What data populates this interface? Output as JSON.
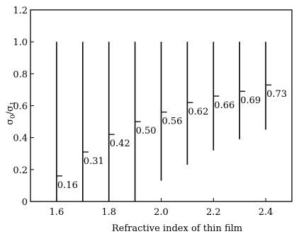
{
  "chart_data": {
    "type": "range-bar",
    "title": "",
    "xlabel": "Refractive index of thin film",
    "ylabel": "σ0/σ1",
    "ylabel_main": "σ",
    "ylabel_sub1": "0",
    "ylabel_slash": "/",
    "ylabel_sub2": "1",
    "xlim": [
      1.5,
      2.5
    ],
    "ylim": [
      0,
      1.2
    ],
    "xticks": [
      1.6,
      1.8,
      2.0,
      2.2,
      2.4
    ],
    "xtick_labels": [
      "1.6",
      "1.8",
      "2.0",
      "2.2",
      "2.4"
    ],
    "yticks": [
      0,
      0.2,
      0.4,
      0.6,
      0.8,
      1.0,
      1.2
    ],
    "ytick_labels": [
      "0",
      "0.2",
      "0.4",
      "0.6",
      "0.8",
      "1.0",
      "1.2"
    ],
    "grid": false,
    "series": [
      {
        "x": [
          1.6,
          1.7,
          1.8,
          1.9,
          2.0,
          2.1,
          2.2,
          2.3,
          2.4
        ],
        "y_top": [
          1.0,
          1.0,
          1.0,
          1.0,
          1.0,
          1.0,
          1.0,
          1.0,
          1.0
        ],
        "y_bottom": [
          0.0,
          0.0,
          0.0,
          0.0,
          0.13,
          0.23,
          0.32,
          0.39,
          0.45
        ],
        "ratio_values": [
          0.16,
          0.31,
          0.42,
          0.5,
          0.56,
          0.62,
          0.66,
          0.69,
          0.73
        ],
        "ratio_labels": [
          "0.16",
          "0.31",
          "0.42",
          "0.50",
          "0.56",
          "0.62",
          "0.66",
          "0.69",
          "0.73"
        ]
      }
    ]
  }
}
